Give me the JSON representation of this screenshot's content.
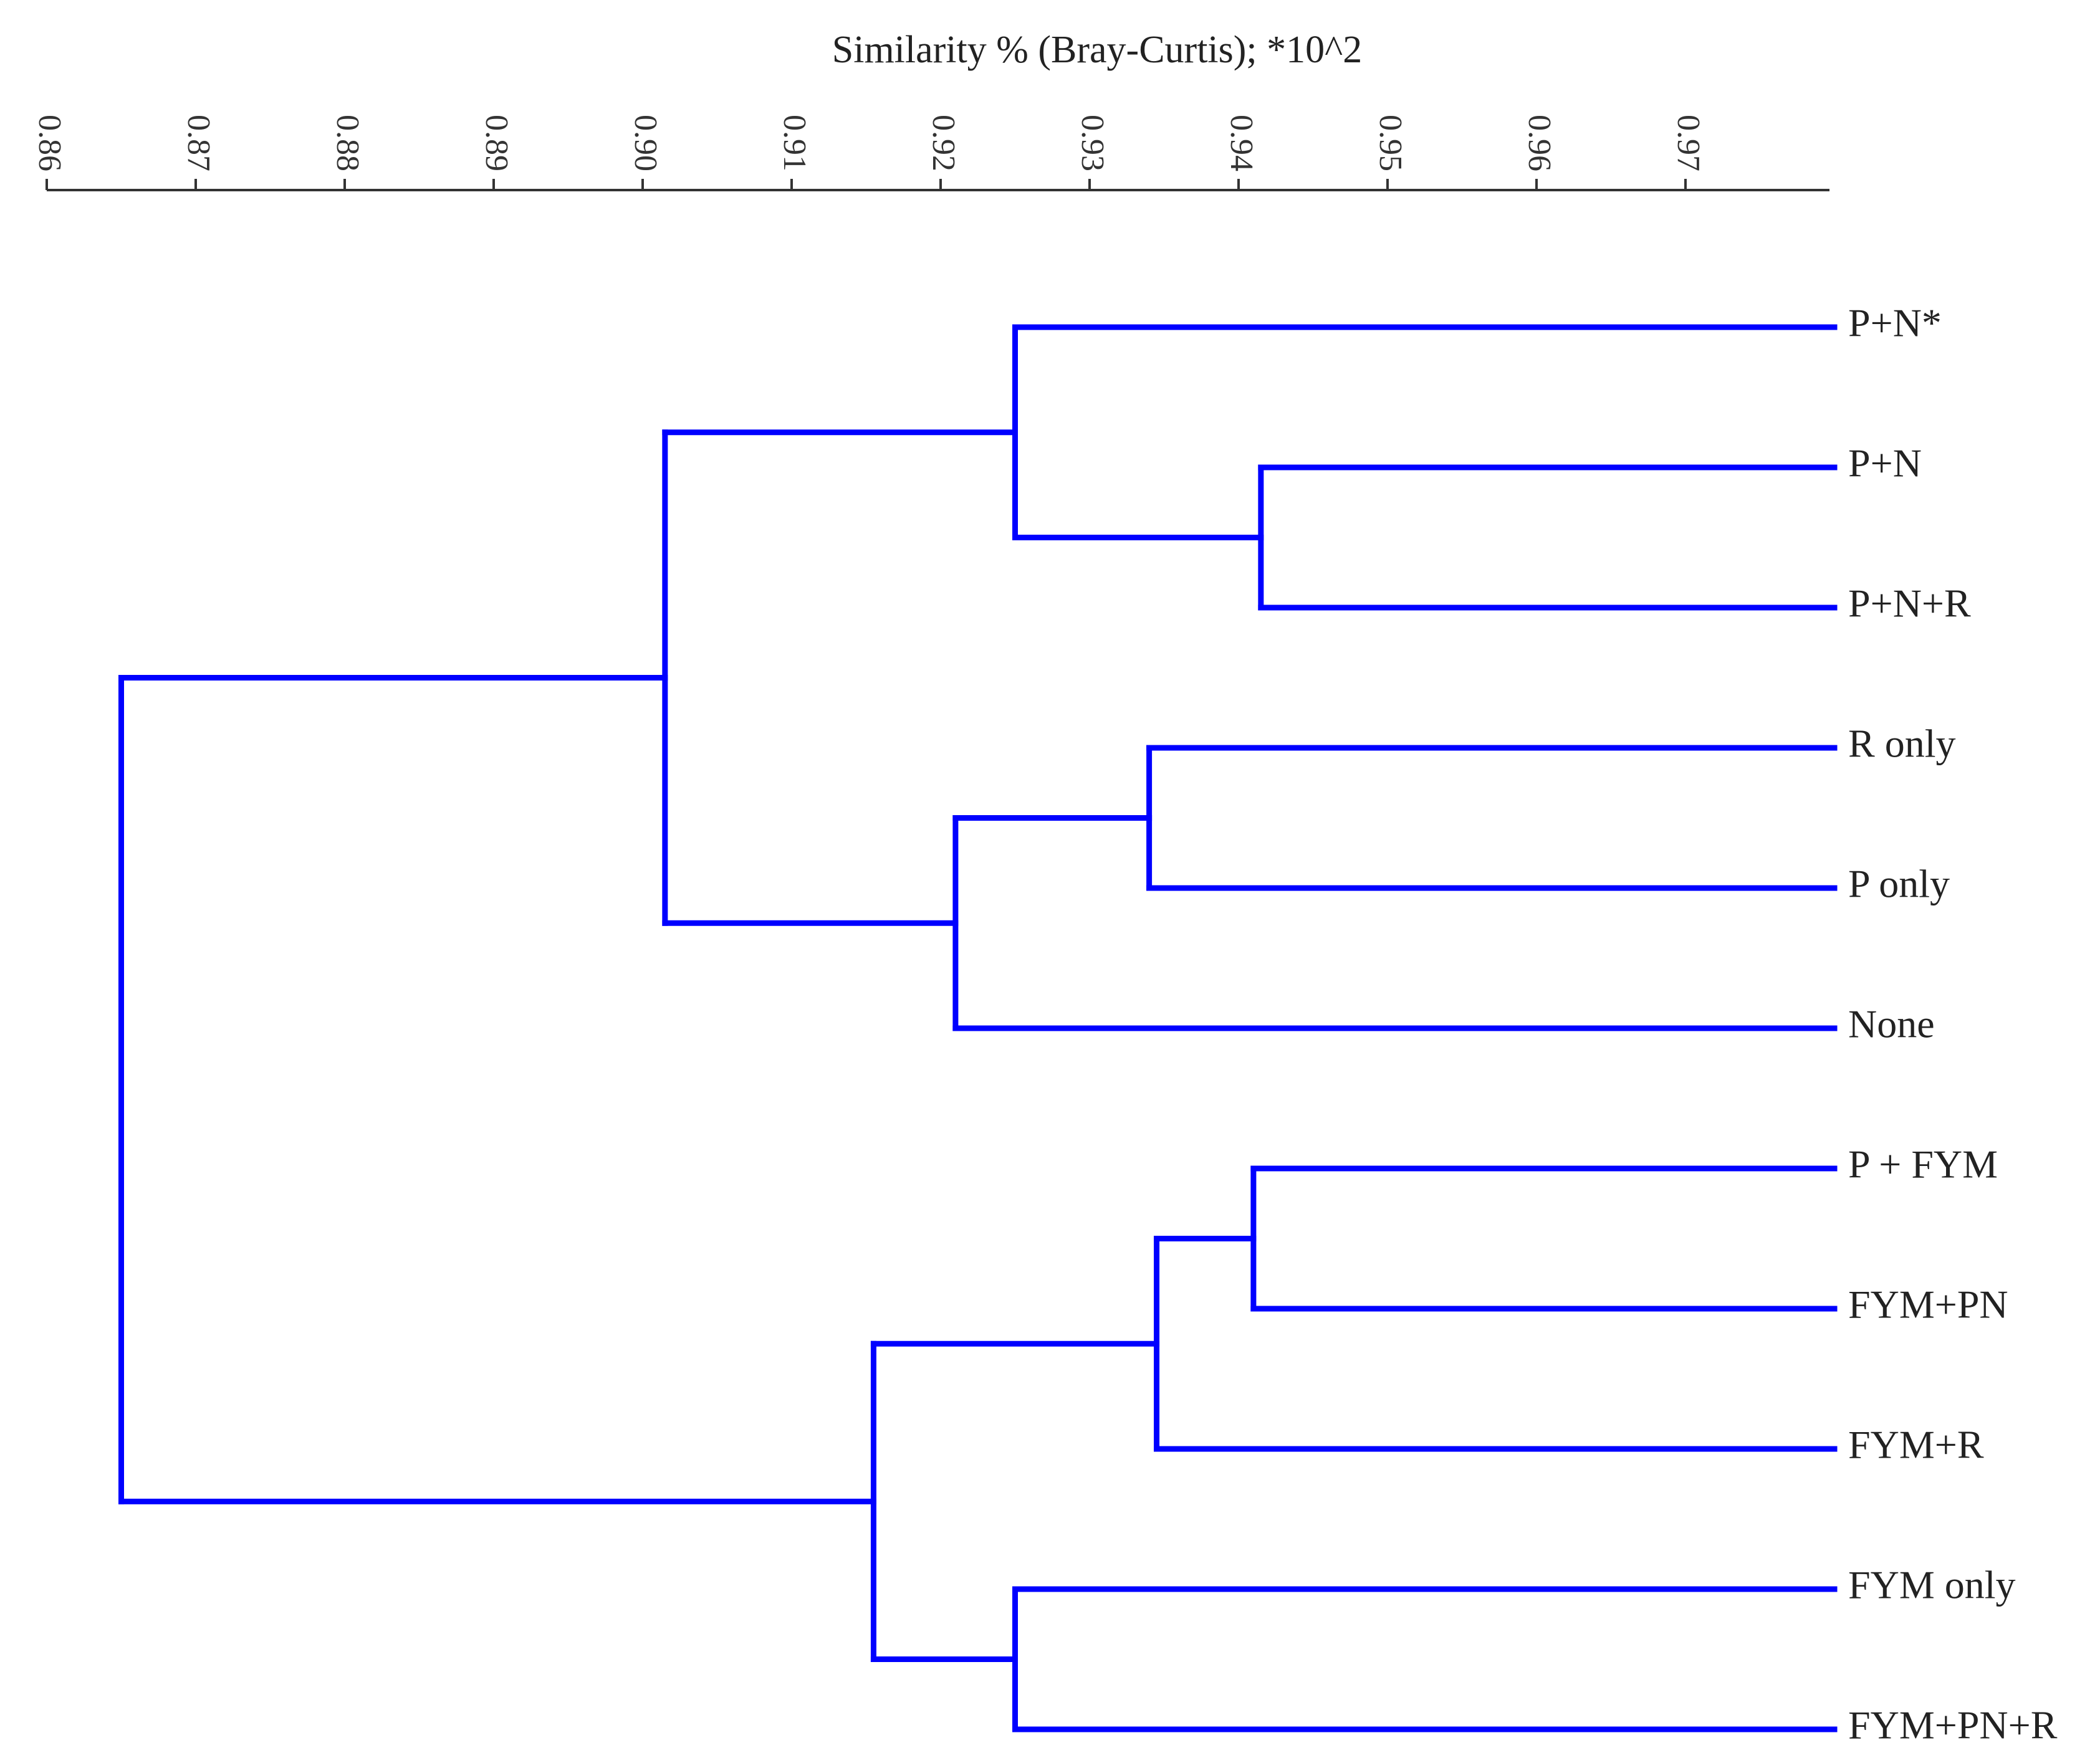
{
  "chart_data": {
    "type": "dendrogram",
    "title": "Similarity % (Bray-Curtis); *10^2",
    "x_axis": {
      "ticks": [
        "0.86",
        "0.87",
        "0.88",
        "0.89",
        "0.90",
        "0.91",
        "0.92",
        "0.93",
        "0.94",
        "0.95",
        "0.96",
        "0.97"
      ],
      "range": [
        0.86,
        0.98
      ],
      "orientation": "top"
    },
    "color": "#0000ff",
    "leaves": [
      "P+N*",
      "P+N",
      "P+N+R",
      "R only",
      "P only",
      "None",
      "P + FYM",
      "FYM+PN",
      "FYM+R",
      "FYM only",
      "FYM+PN+R"
    ],
    "leaf_similarity": 0.98,
    "merges": [
      {
        "id": "m1",
        "children": [
          "P+N",
          "P+N+R"
        ],
        "similarity": 0.9415
      },
      {
        "id": "m2",
        "children": [
          "P+N*",
          "m1"
        ],
        "similarity": 0.925
      },
      {
        "id": "m3",
        "children": [
          "R only",
          "P only"
        ],
        "similarity": 0.934
      },
      {
        "id": "m4",
        "children": [
          "m3",
          "None"
        ],
        "similarity": 0.921
      },
      {
        "id": "m5",
        "children": [
          "m2",
          "m4"
        ],
        "similarity": 0.9015
      },
      {
        "id": "m6",
        "children": [
          "P + FYM",
          "FYM+PN"
        ],
        "similarity": 0.941
      },
      {
        "id": "m7",
        "children": [
          "m6",
          "FYM+R"
        ],
        "similarity": 0.9345
      },
      {
        "id": "m8",
        "children": [
          "FYM only",
          "FYM+PN+R"
        ],
        "similarity": 0.925
      },
      {
        "id": "m9",
        "children": [
          "m7",
          "m8"
        ],
        "similarity": 0.9155
      },
      {
        "id": "m10",
        "children": [
          "m5",
          "m9"
        ],
        "similarity": 0.865
      }
    ]
  }
}
